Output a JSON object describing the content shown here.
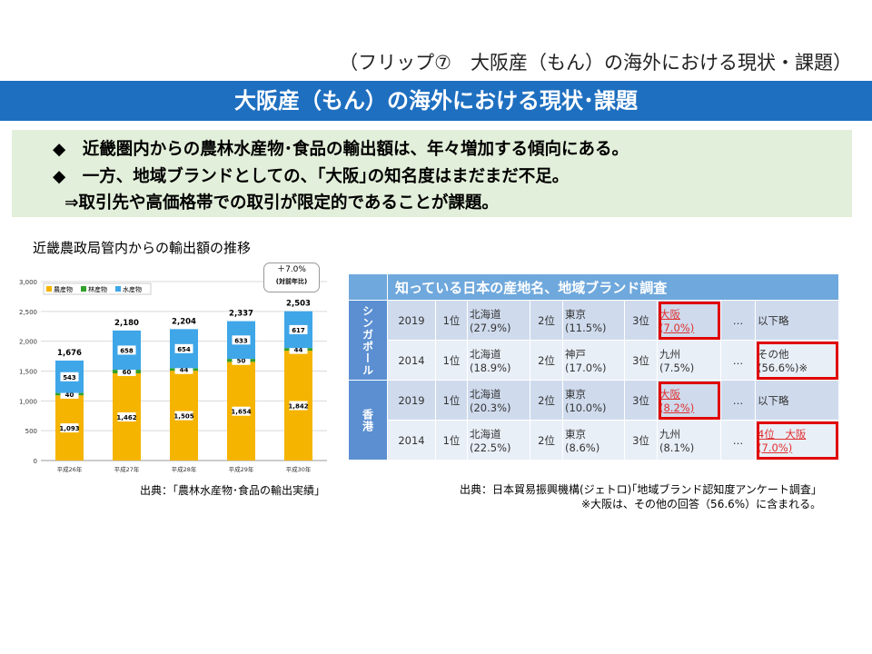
{
  "flip_label": "（フリップ⑦　大阪産（もん）の海外における現状・課題）",
  "title": "大阪産（もん）の海外における現状･課題",
  "summary": [
    "◆　近畿圏内からの農林水産物･食品の輸出額は、年々増加する傾向にある。",
    "◆　一方、地域ブランドとしての、｢大阪｣の知名度はまだまだ不足。",
    "⇒取引先や高価格帯での取引が限定的であることが課題。"
  ],
  "chart_title": "近畿農政局管内からの輸出額の推移",
  "chart_source": "出典：｢農林水産物･食品の輸出実績｣",
  "annotation": {
    "line1": "＋7.0%",
    "line2": "(対前年比)"
  },
  "chart_data": {
    "type": "bar",
    "stacked": true,
    "categories": [
      "平成26年",
      "平成27年",
      "平成28年",
      "平成29年",
      "平成30年"
    ],
    "series": [
      {
        "name": "農産物",
        "color": "#f5b400",
        "values": [
          1093,
          1462,
          1505,
          1654,
          1842
        ]
      },
      {
        "name": "林産物",
        "color": "#33a02c",
        "values": [
          40,
          60,
          44,
          50,
          44
        ]
      },
      {
        "name": "水産物",
        "color": "#3fa6e8",
        "values": [
          543,
          658,
          654,
          633,
          617
        ]
      }
    ],
    "totals": [
      1676,
      2180,
      2204,
      2337,
      2503
    ],
    "yticks": [
      "0",
      "500",
      "1,000",
      "1,500",
      "2,000",
      "2,500",
      "3,000"
    ],
    "ylim": [
      0,
      3000
    ],
    "legend": "top-left"
  },
  "table": {
    "header": "知っている日本の産地名、地域ブランド調査",
    "countries": [
      {
        "name": "シンガポール",
        "rows": [
          {
            "year": "2019",
            "r1": "1位",
            "p1": "北海道",
            "s1": "(27.9%)",
            "r2": "2位",
            "p2": "東京",
            "s2": "(11.5%)",
            "r3": "3位",
            "p3": "大阪",
            "s3": "(7.0%)",
            "dots": "…",
            "last": "以下略",
            "last2": ""
          },
          {
            "year": "2014",
            "r1": "1位",
            "p1": "北海道",
            "s1": "(18.9%)",
            "r2": "2位",
            "p2": "神戸",
            "s2": "(17.0%)",
            "r3": "3位",
            "p3": "九州",
            "s3": "(7.5%)",
            "dots": "…",
            "last": "その他",
            "last2": "(56.6%)※"
          }
        ]
      },
      {
        "name": "香港",
        "rows": [
          {
            "year": "2019",
            "r1": "1位",
            "p1": "北海道",
            "s1": "(20.3%)",
            "r2": "2位",
            "p2": "東京",
            "s2": "(10.0%)",
            "r3": "3位",
            "p3": "大阪",
            "s3": "(8.2%)",
            "dots": "…",
            "last": "以下略",
            "last2": ""
          },
          {
            "year": "2014",
            "r1": "1位",
            "p1": "北海道",
            "s1": "(22.5%)",
            "r2": "2位",
            "p2": "東京",
            "s2": "(8.6%)",
            "r3": "3位",
            "p3": "九州",
            "s3": "(8.1%)",
            "dots": "…",
            "last": "4位　大阪",
            "last2": "(7.0%)"
          }
        ]
      }
    ]
  },
  "table_source": "出典：日本貿易振興機構(ジェトロ)｢地域ブランド認知度アンケート調査｣",
  "table_note": "※大阪は、その他の回答（56.6%）に含まれる。"
}
